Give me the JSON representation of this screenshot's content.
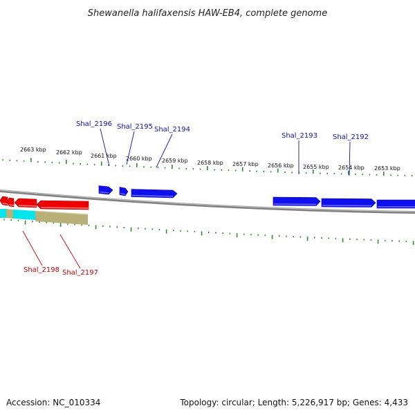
{
  "title": "Shewanella halifaxensis HAW-EB4, complete genome",
  "footer": {
    "accession": "Accession: NC_010334",
    "topology": "Topology: circular; Length: 5,226,917 bp; Genes: 4,433"
  },
  "colors": {
    "tick": "#2e8b2e",
    "backbone": "#808080",
    "forward_gene": "#1010ee",
    "reverse_gene": "#ee0000",
    "cyan_feature": "#00e5ee",
    "olive_feature": "#b8b078",
    "label_forward": "#1010a0",
    "label_reverse": "#c00000"
  },
  "scale_labels": [
    {
      "text": "2663 kbp",
      "kbp": 2663
    },
    {
      "text": "2662 kbp",
      "kbp": 2662
    },
    {
      "text": "2661 kbp",
      "kbp": 2661
    },
    {
      "text": "2660 kbp",
      "kbp": 2660
    },
    {
      "text": "2659 kbp",
      "kbp": 2659
    },
    {
      "text": "2658 kbp",
      "kbp": 2658
    },
    {
      "text": "2657 kbp",
      "kbp": 2657
    },
    {
      "text": "2656 kbp",
      "kbp": 2656
    },
    {
      "text": "2655 kbp",
      "kbp": 2655
    },
    {
      "text": "2654 kbp",
      "kbp": 2654
    },
    {
      "text": "2653 kbp",
      "kbp": 2653
    }
  ],
  "forward_genes": [
    {
      "id": "Shal_2196"
    },
    {
      "id": "Shal_2195"
    },
    {
      "id": "Shal_2194"
    },
    {
      "id": "Shal_2193"
    },
    {
      "id": "Shal_2192"
    }
  ],
  "reverse_genes": [
    {
      "id": "Shal_2198"
    },
    {
      "id": "Shal_2197"
    }
  ]
}
